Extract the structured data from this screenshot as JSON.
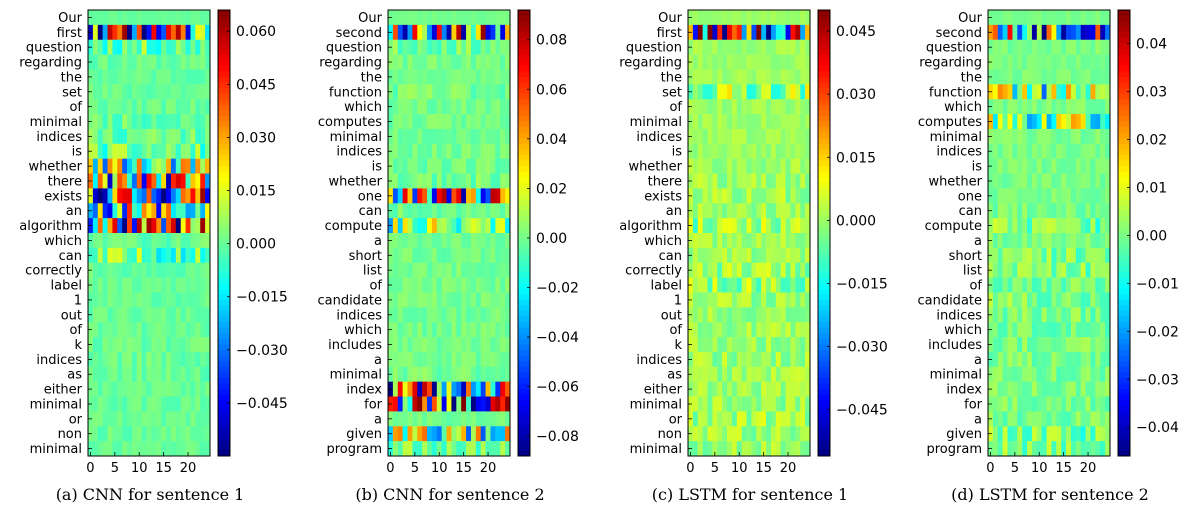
{
  "chart_data": [
    {
      "type": "heatmap",
      "caption": "(a) CNN for sentence 1",
      "row_labels": [
        "Our",
        "first",
        "question",
        "regarding",
        "the",
        "set",
        "of",
        "minimal",
        "indices",
        "is",
        "whether",
        "there",
        "exists",
        "an",
        "algorithm",
        "which",
        "can",
        "correctly",
        "label",
        "1",
        "out",
        "of",
        "k",
        "indices",
        "as",
        "either",
        "minimal",
        "or",
        "non",
        "minimal"
      ],
      "x_ticks": [
        "0",
        "5",
        "10",
        "15",
        "20"
      ],
      "x_range": [
        0,
        25
      ],
      "columns": 25,
      "colorbar": {
        "min": -0.06,
        "max": 0.066,
        "ticks": [
          0.06,
          0.045,
          0.03,
          0.015,
          0.0,
          -0.015,
          -0.03,
          -0.045
        ],
        "tick_labels": [
          "0.060",
          "0.045",
          "0.030",
          "0.015",
          "0.000",
          "−0.015",
          "−0.030",
          "−0.045"
        ]
      },
      "row_intensity": [
        0.02,
        1.0,
        0.2,
        0.06,
        0.05,
        0.06,
        0.06,
        0.1,
        0.12,
        0.2,
        0.55,
        0.85,
        1.0,
        0.7,
        1.0,
        0.08,
        0.25,
        0.06,
        0.05,
        0.05,
        0.05,
        0.05,
        0.06,
        0.08,
        0.06,
        0.05,
        0.06,
        0.05,
        0.06,
        0.05
      ],
      "seed": 11
    },
    {
      "type": "heatmap",
      "caption": "(b) CNN for sentence 2",
      "row_labels": [
        "Our",
        "second",
        "question",
        "regarding",
        "the",
        "function",
        "which",
        "computes",
        "minimal",
        "indices",
        "is",
        "whether",
        "one",
        "can",
        "compute",
        "a",
        "short",
        "list",
        "of",
        "candidate",
        "indices",
        "which",
        "includes",
        "a",
        "minimal",
        "index",
        "for",
        "a",
        "given",
        "program"
      ],
      "x_ticks": [
        "0",
        "5",
        "10",
        "15",
        "20"
      ],
      "x_range": [
        0,
        25
      ],
      "columns": 25,
      "colorbar": {
        "min": -0.088,
        "max": 0.092,
        "ticks": [
          0.08,
          0.06,
          0.04,
          0.02,
          0.0,
          -0.02,
          -0.04,
          -0.06,
          -0.08
        ],
        "tick_labels": [
          "0.08",
          "0.06",
          "0.04",
          "0.02",
          "0.00",
          "−0.02",
          "−0.04",
          "−0.06",
          "−0.08"
        ]
      },
      "row_intensity": [
        0.02,
        1.0,
        0.12,
        0.06,
        0.04,
        0.1,
        0.06,
        0.06,
        0.06,
        0.06,
        0.08,
        0.1,
        1.0,
        0.08,
        0.45,
        0.05,
        0.06,
        0.06,
        0.06,
        0.06,
        0.06,
        0.06,
        0.06,
        0.06,
        0.08,
        1.0,
        1.0,
        0.06,
        0.55,
        0.15
      ],
      "seed": 23
    },
    {
      "type": "heatmap",
      "caption": "(c) LSTM for sentence 1",
      "row_labels": [
        "Our",
        "first",
        "question",
        "regarding",
        "the",
        "set",
        "of",
        "minimal",
        "indices",
        "is",
        "whether",
        "there",
        "exists",
        "an",
        "algorithm",
        "which",
        "can",
        "correctly",
        "label",
        "1",
        "out",
        "of",
        "k",
        "indices",
        "as",
        "either",
        "minimal",
        "or",
        "non",
        "minimal"
      ],
      "x_ticks": [
        "0",
        "5",
        "10",
        "15",
        "20"
      ],
      "x_range": [
        0,
        25
      ],
      "columns": 25,
      "colorbar": {
        "min": -0.056,
        "max": 0.05,
        "ticks": [
          0.045,
          0.03,
          0.015,
          0.0,
          -0.015,
          -0.03,
          -0.045
        ],
        "tick_labels": [
          "0.045",
          "0.030",
          "0.015",
          "0.000",
          "−0.015",
          "−0.030",
          "−0.045"
        ]
      },
      "row_intensity": [
        0.03,
        1.0,
        0.06,
        0.05,
        0.05,
        0.25,
        0.06,
        0.06,
        0.06,
        0.06,
        0.08,
        0.1,
        0.12,
        0.1,
        0.2,
        0.1,
        0.1,
        0.15,
        0.2,
        0.12,
        0.1,
        0.1,
        0.1,
        0.12,
        0.1,
        0.1,
        0.12,
        0.15,
        0.12,
        0.12
      ],
      "seed": 37
    },
    {
      "type": "heatmap",
      "caption": "(d) LSTM for sentence 2",
      "row_labels": [
        "Our",
        "second",
        "question",
        "regarding",
        "the",
        "function",
        "which",
        "computes",
        "minimal",
        "indices",
        "is",
        "whether",
        "one",
        "can",
        "compute",
        "a",
        "short",
        "list",
        "of",
        "candidate",
        "indices",
        "which",
        "includes",
        "a",
        "minimal",
        "index",
        "for",
        "a",
        "given",
        "program"
      ],
      "x_ticks": [
        "0",
        "5",
        "10",
        "15",
        "20"
      ],
      "x_range": [
        0,
        25
      ],
      "columns": 25,
      "colorbar": {
        "min": -0.046,
        "max": 0.047,
        "ticks": [
          0.04,
          0.03,
          0.02,
          0.01,
          0.0,
          -0.01,
          -0.02,
          -0.03,
          -0.04
        ],
        "tick_labels": [
          "0.04",
          "0.03",
          "0.02",
          "0.01",
          "0.00",
          "−0.01",
          "−0.02",
          "−0.03",
          "−0.04"
        ]
      },
      "row_intensity": [
        0.03,
        1.0,
        0.06,
        0.05,
        0.05,
        0.55,
        0.06,
        0.45,
        0.06,
        0.06,
        0.06,
        0.06,
        0.06,
        0.08,
        0.2,
        0.08,
        0.15,
        0.15,
        0.12,
        0.15,
        0.12,
        0.12,
        0.1,
        0.1,
        0.1,
        0.1,
        0.1,
        0.1,
        0.2,
        0.2
      ],
      "seed": 53
    }
  ]
}
